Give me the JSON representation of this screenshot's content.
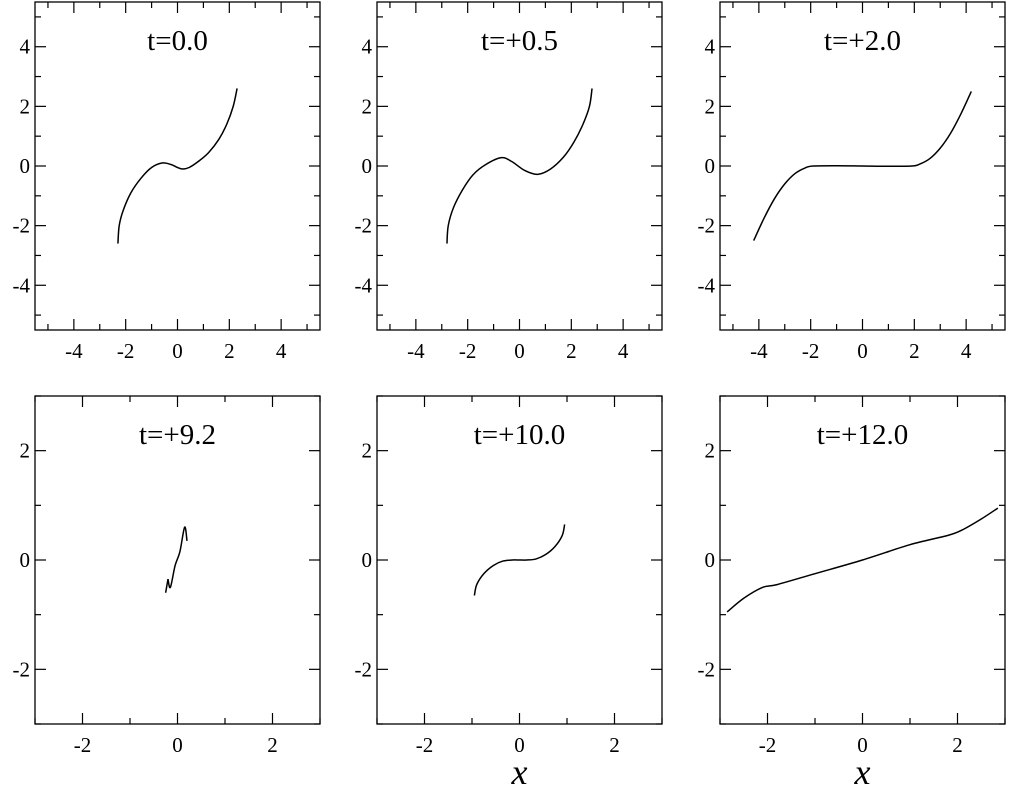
{
  "chart_data": [
    {
      "type": "line",
      "title": "t=0.0",
      "xlim": [
        -5.5,
        5.5
      ],
      "ylim": [
        -5.5,
        5.5
      ],
      "x_ticks": [
        -4,
        -2,
        0,
        2,
        4
      ],
      "y_ticks": [
        -4,
        -2,
        0,
        2,
        4
      ],
      "x_minor_ticks": [
        -5,
        -3,
        -1,
        1,
        3,
        5
      ],
      "y_minor_ticks": [
        -5,
        -3,
        -1,
        1,
        3,
        5
      ],
      "xlabel": "",
      "grid": false,
      "series": [
        {
          "x": [
            -2.3,
            -2.25,
            -2.1,
            -1.8,
            -1.4,
            -1.0,
            -0.6,
            -0.25,
            0.0,
            0.2,
            0.45,
            0.8,
            1.2,
            1.6,
            1.9,
            2.15,
            2.3
          ],
          "y": [
            -2.6,
            -2.0,
            -1.5,
            -0.9,
            -0.4,
            -0.05,
            0.1,
            0.05,
            -0.05,
            -0.1,
            -0.05,
            0.15,
            0.45,
            0.9,
            1.4,
            2.0,
            2.6
          ]
        }
      ]
    },
    {
      "type": "line",
      "title": "t=+0.5",
      "xlim": [
        -5.5,
        5.5
      ],
      "ylim": [
        -5.5,
        5.5
      ],
      "x_ticks": [
        -4,
        -2,
        0,
        2,
        4
      ],
      "y_ticks": [
        -4,
        -2,
        0,
        2,
        4
      ],
      "x_minor_ticks": [
        -5,
        -3,
        -1,
        1,
        3,
        5
      ],
      "y_minor_ticks": [
        -5,
        -3,
        -1,
        1,
        3,
        5
      ],
      "xlabel": "",
      "grid": false,
      "series": [
        {
          "x": [
            -2.8,
            -2.75,
            -2.55,
            -2.2,
            -1.8,
            -1.3,
            -0.7,
            -0.3,
            0.2,
            0.7,
            1.2,
            1.7,
            2.1,
            2.45,
            2.7,
            2.8
          ],
          "y": [
            -2.6,
            -2.0,
            -1.4,
            -0.8,
            -0.3,
            0.05,
            0.28,
            0.15,
            -0.15,
            -0.28,
            -0.1,
            0.3,
            0.8,
            1.4,
            2.0,
            2.6
          ]
        }
      ]
    },
    {
      "type": "line",
      "title": "t=+2.0",
      "xlim": [
        -5.5,
        5.5
      ],
      "ylim": [
        -5.5,
        5.5
      ],
      "x_ticks": [
        -4,
        -2,
        0,
        2,
        4
      ],
      "y_ticks": [
        -4,
        -2,
        0,
        2,
        4
      ],
      "x_minor_ticks": [
        -5,
        -3,
        -1,
        1,
        3,
        5
      ],
      "y_minor_ticks": [
        -5,
        -3,
        -1,
        1,
        3,
        5
      ],
      "xlabel": "",
      "grid": false,
      "series": [
        {
          "x": [
            -4.2,
            -3.8,
            -3.4,
            -3.0,
            -2.6,
            -2.2,
            -1.9,
            -1.0,
            0.0,
            1.0,
            1.9,
            2.2,
            2.6,
            3.0,
            3.4,
            3.8,
            4.2
          ],
          "y": [
            -2.5,
            -1.75,
            -1.1,
            -0.6,
            -0.25,
            -0.06,
            0.0,
            0.01,
            0.0,
            -0.01,
            0.0,
            0.06,
            0.25,
            0.6,
            1.1,
            1.75,
            2.5
          ]
        }
      ]
    },
    {
      "type": "line",
      "title": "t=+9.2",
      "xlim": [
        -3,
        3
      ],
      "ylim": [
        -3,
        3
      ],
      "x_ticks": [
        -2,
        0,
        2
      ],
      "y_ticks": [
        -2,
        0,
        2
      ],
      "x_minor_ticks": [
        -3,
        -1,
        1,
        3
      ],
      "y_minor_ticks": [
        -3,
        -1,
        1,
        3
      ],
      "xlabel": "",
      "grid": false,
      "series": [
        {
          "x": [
            -0.2,
            -0.15,
            -0.05,
            0.05,
            0.15,
            0.2
          ],
          "y": [
            -0.35,
            -0.5,
            -0.1,
            0.15,
            0.6,
            0.35
          ]
        },
        {
          "x": [
            -0.25,
            -0.2
          ],
          "y": [
            -0.6,
            -0.35
          ]
        }
      ]
    },
    {
      "type": "line",
      "title": "t=+10.0",
      "xlim": [
        -3,
        3
      ],
      "ylim": [
        -3,
        3
      ],
      "x_ticks": [
        -2,
        0,
        2
      ],
      "y_ticks": [
        -2,
        0,
        2
      ],
      "x_minor_ticks": [
        -3,
        -1,
        1,
        3
      ],
      "y_minor_ticks": [
        -3,
        -1,
        1,
        3
      ],
      "xlabel": "x",
      "grid": false,
      "series": [
        {
          "x": [
            -0.95,
            -0.9,
            -0.75,
            -0.55,
            -0.35,
            -0.15,
            0.0,
            0.15,
            0.35,
            0.55,
            0.75,
            0.9,
            0.95
          ],
          "y": [
            -0.65,
            -0.45,
            -0.25,
            -0.1,
            -0.02,
            0.0,
            0.0,
            0.0,
            0.02,
            0.1,
            0.25,
            0.45,
            0.65
          ]
        }
      ]
    },
    {
      "type": "line",
      "title": "t=+12.0",
      "xlim": [
        -3,
        3
      ],
      "ylim": [
        -3,
        3
      ],
      "x_ticks": [
        -2,
        0,
        2
      ],
      "y_ticks": [
        -2,
        0,
        2
      ],
      "x_minor_ticks": [
        -3,
        -1,
        1,
        3
      ],
      "y_minor_ticks": [
        -3,
        -1,
        1,
        3
      ],
      "xlabel": "x",
      "grid": false,
      "series": [
        {
          "x": [
            -2.85,
            -2.5,
            -2.1,
            -1.8,
            -1.0,
            0.0,
            1.0,
            1.8,
            2.1,
            2.5,
            2.85
          ],
          "y": [
            -0.95,
            -0.7,
            -0.5,
            -0.45,
            -0.25,
            0.0,
            0.28,
            0.45,
            0.55,
            0.75,
            0.95
          ]
        }
      ]
    }
  ]
}
